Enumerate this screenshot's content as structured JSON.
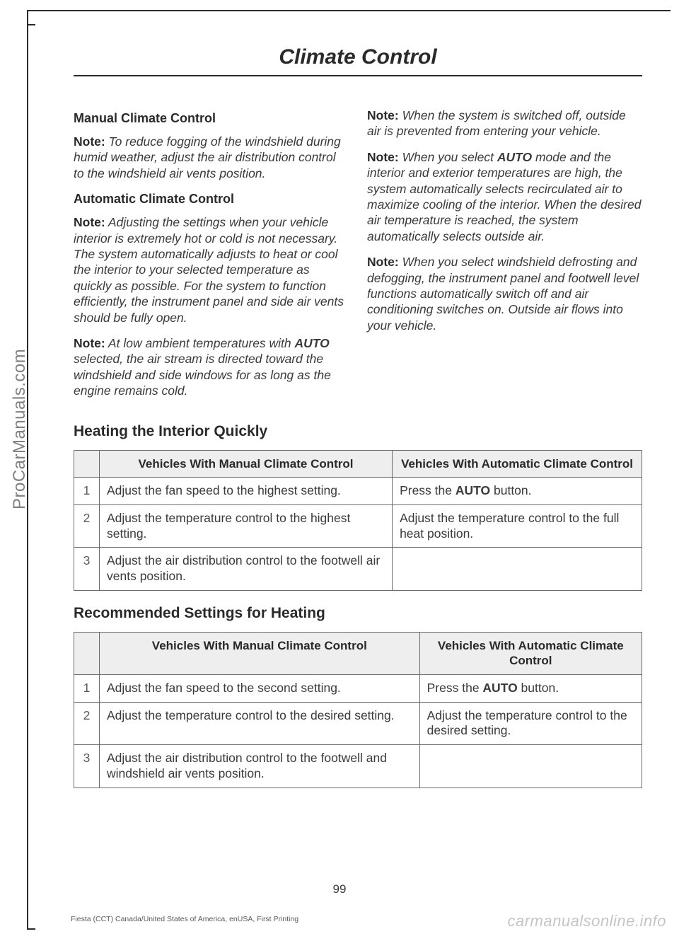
{
  "page": {
    "title": "Climate Control",
    "number": "99",
    "footer_left": "Fiesta (CCT) Canada/United States of America, enUSA, First Printing",
    "footer_right": "carmanualsonline.info",
    "side_brand": "ProCarManuals.com"
  },
  "left": {
    "h_manual": "Manual Climate Control",
    "note1_label": "Note:",
    "note1_text": " To reduce fogging of the windshield during humid weather, adjust the air distribution control to the windshield air vents position.",
    "h_auto": "Automatic Climate Control",
    "note2_label": "Note:",
    "note2_text": " Adjusting the settings when your vehicle interior is extremely hot or cold is not necessary. The system automatically adjusts to heat or cool the interior to your selected temperature as quickly as possible. For the system to function efficiently, the instrument panel and side air vents should be fully open.",
    "note3_label": "Note:",
    "note3_pre": " At low ambient temperatures with ",
    "note3_auto": "AUTO",
    "note3_post": " selected, the air stream is directed toward the windshield and side windows for as long as the engine remains cold."
  },
  "right": {
    "note4_label": "Note:",
    "note4_text": " When the system is switched off, outside air is prevented from entering your vehicle.",
    "note5_label": "Note:",
    "note5_pre": " When you select ",
    "note5_auto": "AUTO",
    "note5_post": " mode and the interior and exterior temperatures are high, the system automatically selects recirculated air to maximize cooling of the interior. When the desired air temperature is reached, the system automatically selects outside air.",
    "note6_label": "Note:",
    "note6_text": " When you select windshield defrosting and defogging, the instrument panel and footwell level functions automatically switch off and air conditioning switches on. Outside air flows into your vehicle."
  },
  "section1": {
    "heading": "Heating the Interior Quickly",
    "col_manual": "Vehicles With Manual Climate Control",
    "col_auto": "Vehicles With Automatic Climate Control",
    "rows": [
      {
        "n": "1",
        "m": "Adjust the fan speed to the highest setting.",
        "a_pre": "Press the ",
        "a_bold": "AUTO",
        "a_post": " button."
      },
      {
        "n": "2",
        "m": "Adjust the temperature control to the highest setting.",
        "a": "Adjust the temperature control to the full heat position."
      },
      {
        "n": "3",
        "m": "Adjust the air distribution control to the footwell air vents position.",
        "a": ""
      }
    ]
  },
  "section2": {
    "heading": "Recommended Settings for Heating",
    "col_manual": "Vehicles With Manual Climate Control",
    "col_auto": "Vehicles With Automatic Climate Control",
    "rows": [
      {
        "n": "1",
        "m": "Adjust the fan speed to the second setting.",
        "a_pre": "Press the ",
        "a_bold": "AUTO",
        "a_post": " button."
      },
      {
        "n": "2",
        "m": "Adjust the temperature control to the desired setting.",
        "a": "Adjust the temperature control to the desired setting."
      },
      {
        "n": "3",
        "m": "Adjust the air distribution control to the footwell and windshield air vents position.",
        "a": ""
      }
    ]
  }
}
